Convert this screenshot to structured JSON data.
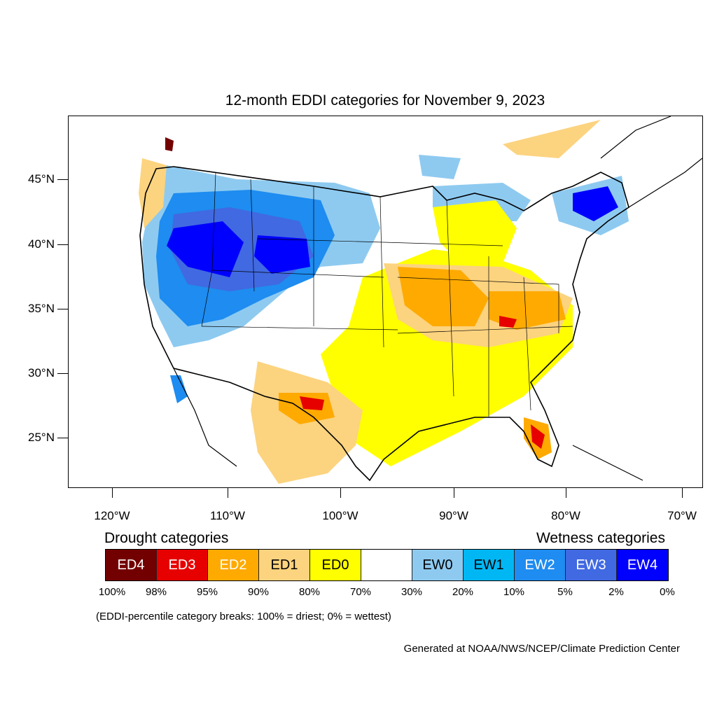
{
  "title": "12-month EDDI categories for November 9, 2023",
  "lat_labels": [
    "45°N",
    "40°N",
    "35°N",
    "30°N",
    "25°N"
  ],
  "lon_labels": [
    "120°W",
    "110°W",
    "100°W",
    "90°W",
    "80°W",
    "70°W"
  ],
  "legend": {
    "drought_heading": "Drought categories",
    "wetness_heading": "Wetness categories",
    "categories": [
      {
        "label": "ED4",
        "color": "#730000",
        "text_color": "#ffffff"
      },
      {
        "label": "ED3",
        "color": "#e60000",
        "text_color": "#ffffff"
      },
      {
        "label": "ED2",
        "color": "#ffaa00",
        "text_color": "#ffffff"
      },
      {
        "label": "ED1",
        "color": "#fcd37f",
        "text_color": "#000000"
      },
      {
        "label": "ED0",
        "color": "#ffff00",
        "text_color": "#000000"
      },
      {
        "label": "",
        "color": "#ffffff",
        "text_color": "#000000"
      },
      {
        "label": "EW0",
        "color": "#8ecaf0",
        "text_color": "#000000"
      },
      {
        "label": "EW1",
        "color": "#00b7f4",
        "text_color": "#000000"
      },
      {
        "label": "EW2",
        "color": "#1e8cf0",
        "text_color": "#ffffff"
      },
      {
        "label": "EW3",
        "color": "#4169e1",
        "text_color": "#ffffff"
      },
      {
        "label": "EW4",
        "color": "#0000ff",
        "text_color": "#ffffff"
      }
    ],
    "breaks": [
      "100%",
      "98%",
      "95%",
      "90%",
      "80%",
      "70%",
      "30%",
      "20%",
      "10%",
      "5%",
      "2%",
      "0%"
    ]
  },
  "note": "(EDDI-percentile category breaks: 100% = driest; 0% = wettest)",
  "credit": "Generated at NOAA/NWS/NCEP/Climate Prediction Center"
}
